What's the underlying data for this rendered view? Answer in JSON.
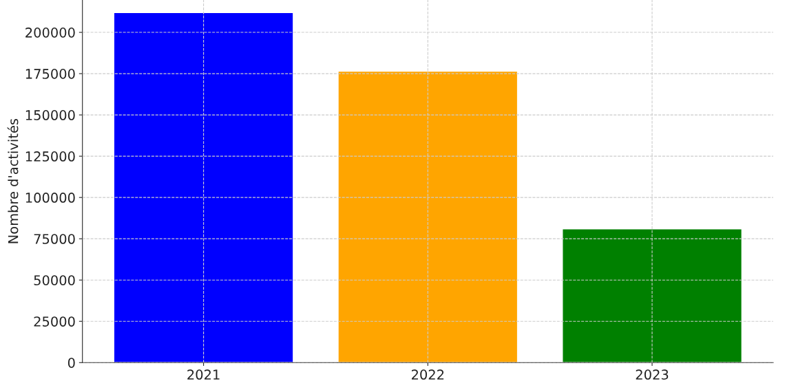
{
  "chart_data": {
    "type": "bar",
    "ylabel": "Nombre d'activités",
    "categories": [
      "2021",
      "2022",
      "2023"
    ],
    "values": [
      212000,
      176500,
      81000
    ],
    "colors": [
      "#0000ff",
      "#ffa500",
      "#008000"
    ],
    "ylim": [
      0,
      219600
    ],
    "yticks": [
      0,
      25000,
      50000,
      75000,
      100000,
      125000,
      150000,
      175000,
      200000
    ],
    "grid": true
  }
}
